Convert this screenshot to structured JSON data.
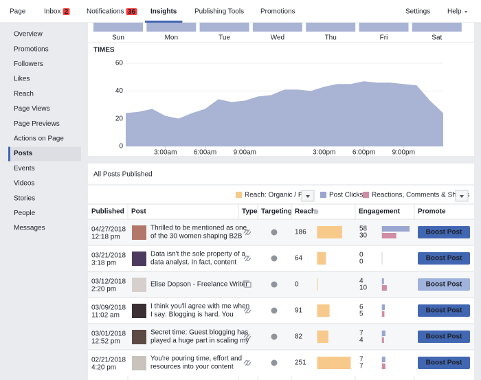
{
  "nav": {
    "items": [
      {
        "label": "Page"
      },
      {
        "label": "Inbox",
        "badge": 2
      },
      {
        "label": "Notifications",
        "badge": 36
      },
      {
        "label": "Insights",
        "active": true
      },
      {
        "label": "Publishing Tools"
      },
      {
        "label": "Promotions"
      }
    ],
    "right": [
      "Settings",
      "Help"
    ]
  },
  "sidebar": {
    "items": [
      "Overview",
      "Promotions",
      "Followers",
      "Likes",
      "Reach",
      "Page Views",
      "Page Previews",
      "Actions on Page",
      "Posts",
      "Events",
      "Videos",
      "Stories",
      "People",
      "Messages"
    ],
    "active": 8
  },
  "week": [
    "Sun",
    "Mon",
    "Tue",
    "Wed",
    "Thu",
    "Fri",
    "Sat"
  ],
  "chart_data": {
    "type": "area",
    "title": "TIMES",
    "color": "#a9b3d4",
    "x": [
      0,
      1,
      2,
      3,
      4,
      5,
      6,
      7,
      8,
      9,
      10,
      11,
      12,
      13,
      14,
      15,
      16,
      17,
      18,
      19,
      20,
      21,
      22,
      23,
      24
    ],
    "values": [
      24,
      25,
      27,
      22,
      20,
      24,
      27,
      34,
      32,
      33,
      36,
      37,
      41,
      41,
      40,
      43,
      45,
      45,
      47,
      46,
      46,
      45,
      44,
      33,
      24
    ],
    "xlim": [
      0,
      24
    ],
    "ylim": [
      0,
      60
    ],
    "yticks": [
      0,
      20,
      40,
      60
    ],
    "xticks": [
      {
        "value": 3,
        "label": "3:00am"
      },
      {
        "value": 6,
        "label": "6:00am"
      },
      {
        "value": 9,
        "label": "9:00am"
      },
      {
        "value": 15,
        "label": "3:00pm"
      },
      {
        "value": 18,
        "label": "6:00pm"
      },
      {
        "value": 21,
        "label": "9:00pm"
      }
    ]
  },
  "posts": {
    "title": "All Posts Published",
    "legend": [
      {
        "name": "Reach: Organic / Paid",
        "color": "#f7c98b"
      },
      {
        "name": "Post Clicks",
        "color": "#9aa6d0"
      },
      {
        "name": "Reactions, Comments & Shares",
        "color": "#d08ca2"
      }
    ],
    "columns": [
      "Published",
      "Post",
      "Type",
      "Targeting",
      "Reach",
      "Engagement",
      "Promote"
    ],
    "button": "Boost Post",
    "rows": [
      {
        "date": "04/27/2018",
        "time": "12:18 pm",
        "text": [
          "Thrilled to be mentioned as one",
          "of the 30 women shaping B2B"
        ],
        "type": "link",
        "reach": 186,
        "clicks": 58,
        "reactions": 30,
        "boost_active": true
      },
      {
        "date": "03/21/2018",
        "time": "3:18 pm",
        "text": [
          "Data isn't the sole property of a",
          "data analyst. In fact, content"
        ],
        "type": "link",
        "reach": 64,
        "clicks": 0,
        "reactions": 0,
        "boost_active": true
      },
      {
        "date": "03/12/2018",
        "time": "2:20 pm",
        "text": [
          "Elise Dopson - Freelance Writer"
        ],
        "type": "album",
        "reach": 0,
        "clicks": 4,
        "reactions": 10,
        "boost_active": false
      },
      {
        "date": "03/09/2018",
        "time": "11:02 am",
        "text": [
          "I think you'll agree with me when",
          "I say: Blogging is hard. You"
        ],
        "type": "link",
        "reach": 91,
        "clicks": 6,
        "reactions": 5,
        "boost_active": true
      },
      {
        "date": "03/01/2018",
        "time": "12:52 pm",
        "text": [
          "Secret time: Guest blogging has",
          "played a huge part in scaling my"
        ],
        "type": "link",
        "reach": 82,
        "clicks": 7,
        "reactions": 4,
        "boost_active": true
      },
      {
        "date": "02/21/2018",
        "time": "4:20 pm",
        "text": [
          "You're pouring time, effort and",
          "resources into your content"
        ],
        "type": "link",
        "reach": 251,
        "clicks": 7,
        "reactions": 7,
        "boost_active": true
      }
    ]
  }
}
